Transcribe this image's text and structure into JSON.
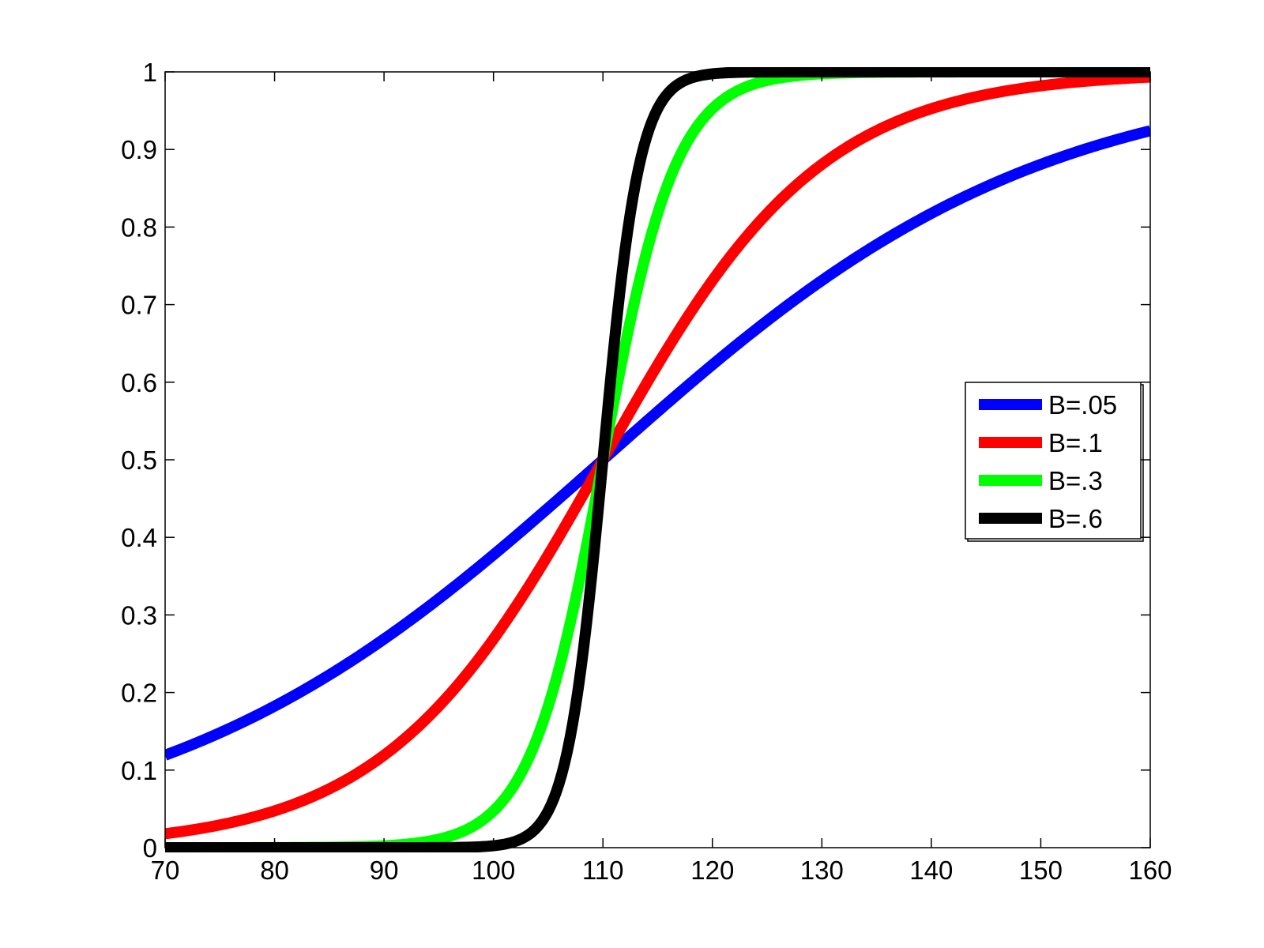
{
  "chart_data": {
    "type": "line",
    "title": "",
    "xlabel": "",
    "ylabel": "",
    "xlim": [
      70,
      160
    ],
    "ylim": [
      0,
      1
    ],
    "xticks": [
      70,
      80,
      90,
      100,
      110,
      120,
      130,
      140,
      150,
      160
    ],
    "yticks": [
      0,
      0.1,
      0.2,
      0.3,
      0.4,
      0.5,
      0.6,
      0.7,
      0.8,
      0.9,
      1
    ],
    "xtick_labels": [
      "70",
      "80",
      "90",
      "100",
      "110",
      "120",
      "130",
      "140",
      "150",
      "160"
    ],
    "ytick_labels": [
      "0",
      "0.1",
      "0.2",
      "0.3",
      "0.4",
      "0.5",
      "0.6",
      "0.7",
      "0.8",
      "0.9",
      "1"
    ],
    "grid": false,
    "legend_position": "right",
    "x": [
      70,
      75,
      80,
      85,
      90,
      95,
      100,
      102,
      104,
      106,
      108,
      110,
      112,
      114,
      116,
      118,
      120,
      125,
      130,
      135,
      140,
      145,
      150,
      155,
      160
    ],
    "series": [
      {
        "name": "B=.05",
        "color": "#0000ff",
        "values": [
          0.119,
          0.15,
          0.182,
          0.223,
          0.269,
          0.321,
          0.378,
          0.401,
          0.425,
          0.45,
          0.475,
          0.5,
          0.525,
          0.55,
          0.574,
          0.599,
          0.622,
          0.679,
          0.731,
          0.777,
          0.818,
          0.852,
          0.881,
          0.905,
          0.924
        ]
      },
      {
        "name": "B=.1",
        "color": "#ff0000",
        "values": [
          0.018,
          0.029,
          0.047,
          0.076,
          0.119,
          0.182,
          0.269,
          0.31,
          0.354,
          0.401,
          0.45,
          0.5,
          0.55,
          0.599,
          0.646,
          0.69,
          0.731,
          0.818,
          0.881,
          0.924,
          0.953,
          0.971,
          0.982,
          0.989,
          0.993
        ]
      },
      {
        "name": "B=.3",
        "color": "#00ff00",
        "values": [
          0.0,
          0.0,
          0.0,
          0.0,
          0.002,
          0.011,
          0.047,
          0.083,
          0.142,
          0.231,
          0.354,
          0.5,
          0.646,
          0.769,
          0.858,
          0.917,
          0.953,
          0.989,
          0.998,
          1.0,
          1.0,
          1.0,
          1.0,
          1.0,
          1.0
        ]
      },
      {
        "name": "B=.6",
        "color": "#000000",
        "values": [
          0.0,
          0.0,
          0.0,
          0.0,
          0.0,
          0.0,
          0.002,
          0.008,
          0.027,
          0.083,
          0.231,
          0.5,
          0.769,
          0.917,
          0.973,
          0.992,
          0.998,
          1.0,
          1.0,
          1.0,
          1.0,
          1.0,
          1.0,
          1.0,
          1.0
        ]
      }
    ]
  }
}
